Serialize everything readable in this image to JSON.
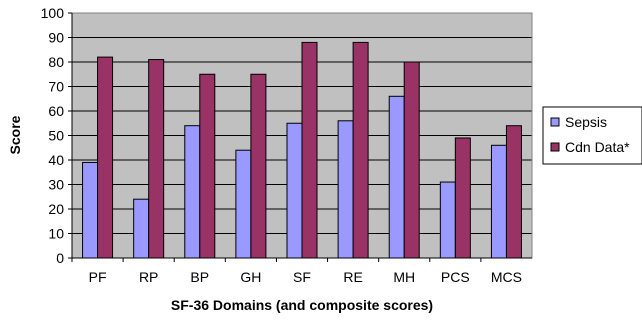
{
  "chart_data": {
    "type": "bar",
    "title": "",
    "xlabel": "SF-36 Domains (and composite scores)",
    "ylabel": "Score",
    "categories": [
      "PF",
      "RP",
      "BP",
      "GH",
      "SF",
      "RE",
      "MH",
      "PCS",
      "MCS"
    ],
    "ylim": [
      0,
      100
    ],
    "yticks": [
      "0",
      "10",
      "20",
      "30",
      "40",
      "50",
      "60",
      "70",
      "80",
      "90",
      "100"
    ],
    "grid": true,
    "legend_position": "right",
    "series": [
      {
        "name": "Sepsis",
        "color": "#9999FF",
        "values": [
          39,
          24,
          54,
          44,
          55,
          56,
          66,
          31,
          46
        ]
      },
      {
        "name": "Cdn Data*",
        "color": "#993366",
        "values": [
          82,
          81,
          75,
          75,
          88,
          88,
          80,
          49,
          54
        ]
      }
    ],
    "plot_background": "#C0C0C0"
  }
}
